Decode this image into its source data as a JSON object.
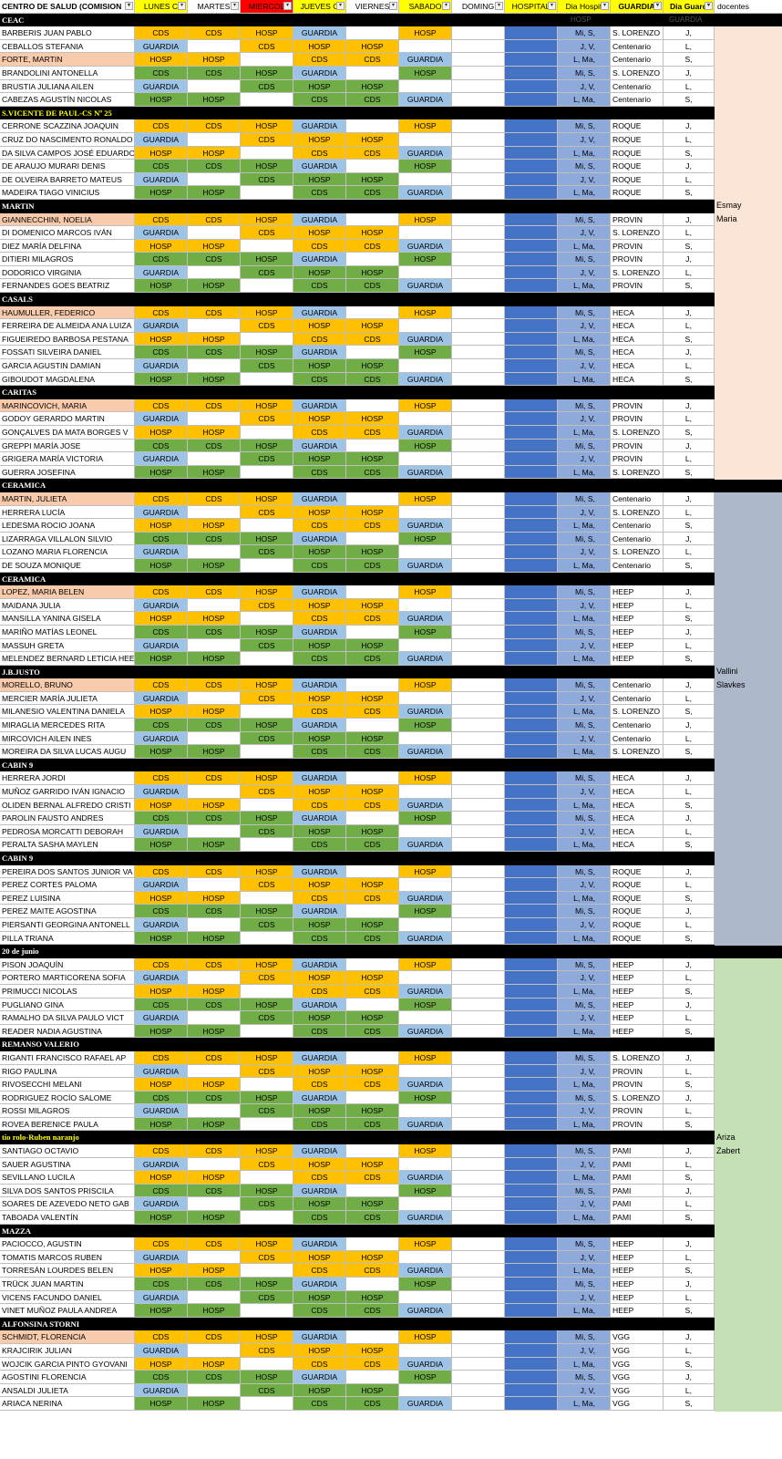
{
  "colors": {
    "cds": "#ffc000",
    "hosp_orange": "#ffc000",
    "hosp_green": "#70ad47",
    "guardia_blue": "#9dc3e6",
    "green": "#70ad47",
    "hospital_col": "#4472c4",
    "dia_hosp_col": "#8eaadb",
    "highlight_name": "#f8cbad",
    "section_bg": "#000000",
    "side_peach": "#fbe5d6",
    "side_slate": "#adb9ca",
    "side_green": "#c5e0b4"
  },
  "headers": {
    "centro": "CENTRO DE SALUD (COMISION",
    "lunes": "LUNES C",
    "martes": "MARTES",
    "miercoles": "MIERCOL",
    "jueves": "JUEVES C",
    "viernes": "VIERNES",
    "sabado": "SABADO",
    "domingo": "DOMING",
    "hospital": "HOSPITAL",
    "dia_hosp": "Dia Hospit",
    "guardia": "GUARDIA",
    "dia_guard": "Dia Guard",
    "docentes": "docentes",
    "dropdown_icon": "▾"
  },
  "patterns": {
    "A": {
      "days": [
        "CDS",
        "CDS",
        "HOSP",
        "GUARDIA",
        "",
        "HOSP",
        ""
      ],
      "fills": [
        "o",
        "o",
        "o",
        "b",
        "w",
        "o",
        "w"
      ],
      "dia_hosp": "Mi, S,",
      "dia_guard": "J,"
    },
    "B": {
      "days": [
        "GUARDIA",
        "",
        "CDS",
        "HOSP",
        "HOSP",
        "",
        ""
      ],
      "fills": [
        "b",
        "w",
        "o",
        "o",
        "o",
        "w",
        "w"
      ],
      "dia_hosp": "J, V,",
      "dia_guard": "L,"
    },
    "C": {
      "days": [
        "HOSP",
        "HOSP",
        "",
        "CDS",
        "CDS",
        "GUARDIA",
        ""
      ],
      "fills": [
        "o",
        "o",
        "w",
        "o",
        "o",
        "b",
        "w"
      ],
      "dia_hosp": "L, Ma,",
      "dia_guard": "S,"
    },
    "D": {
      "days": [
        "CDS",
        "CDS",
        "HOSP",
        "GUARDIA",
        "",
        "HOSP",
        ""
      ],
      "fills": [
        "g",
        "g",
        "g",
        "b",
        "w",
        "g",
        "w"
      ],
      "dia_hosp": "Mi, S,",
      "dia_guard": "J,"
    },
    "E": {
      "days": [
        "GUARDIA",
        "",
        "CDS",
        "HOSP",
        "HOSP",
        "",
        ""
      ],
      "fills": [
        "b",
        "w",
        "g",
        "g",
        "g",
        "w",
        "w"
      ],
      "dia_hosp": "J, V,",
      "dia_guard": "L,"
    },
    "F": {
      "days": [
        "HOSP",
        "HOSP",
        "",
        "CDS",
        "CDS",
        "GUARDIA",
        ""
      ],
      "fills": [
        "g",
        "g",
        "w",
        "g",
        "g",
        "b",
        "w"
      ],
      "dia_hosp": "L, Ma,",
      "dia_guard": "S,"
    }
  },
  "top_labels": {
    "hosp": "HOSP",
    "guardia": "GUARDIA"
  },
  "sections": [
    {
      "title": "CEAC",
      "title_color": "#ffffff",
      "rows": [
        {
          "name": "BARBERIS JUAN PABLO",
          "p": "A",
          "g": "S. LORENZO",
          "hl": false
        },
        {
          "name": "CEBALLOS STEFANIA",
          "p": "B",
          "g": "Centenario",
          "hl": false
        },
        {
          "name": "FORTE, MARTIN",
          "p": "C",
          "g": "Centenario",
          "hl": true
        },
        {
          "name": "BRANDOLINI ANTONELLA",
          "p": "D",
          "g": "S. LORENZO",
          "hl": false
        },
        {
          "name": "BRUSTIA JULIANA AILEN",
          "p": "E",
          "g": "Centenario",
          "hl": false
        },
        {
          "name": "CABEZAS AGUSTÍN NICOLAS",
          "p": "F",
          "g": "Centenario",
          "hl": false
        }
      ]
    },
    {
      "title": "S.VICENTE DE PAUL-CS Nº 25",
      "title_color": "#ffff00",
      "rows": [
        {
          "name": "CERRONE SCAZZINA JOAQUIN",
          "p": "A",
          "g": "ROQUE",
          "hl": false
        },
        {
          "name": "CRUZ DO NASCIMENTO RONALDO",
          "p": "B",
          "g": "ROQUE",
          "hl": false
        },
        {
          "name": "DA SILVA CAMPOS  JOSÉ EDUARDO",
          "p": "C",
          "g": "ROQUE",
          "hl": false
        },
        {
          "name": "DE ARAUJO MURARI DENIS",
          "p": "D",
          "g": "ROQUE",
          "hl": false
        },
        {
          "name": "DE OLVEIRA BARRETO  MATEUS",
          "p": "E",
          "g": "ROQUE",
          "hl": false
        },
        {
          "name": "MADEIRA TIAGO VINICIUS",
          "p": "F",
          "g": "ROQUE",
          "hl": false
        }
      ]
    },
    {
      "title": "MARTIN",
      "title_color": "#ffffff",
      "rows": [
        {
          "name": "GIANNECCHINI, NOELIA",
          "p": "A",
          "g": "PROVIN",
          "hl": true
        },
        {
          "name": "DI DOMENICO MARCOS IVÁN",
          "p": "B",
          "g": "S. LORENZO",
          "hl": false
        },
        {
          "name": "DIEZ MARÍA DELFINA",
          "p": "C",
          "g": "PROVIN",
          "hl": false
        },
        {
          "name": "DITIERI MILAGROS",
          "p": "D",
          "g": "PROVIN",
          "hl": false
        },
        {
          "name": "DODORICO VIRGINIA",
          "p": "E",
          "g": "S. LORENZO",
          "hl": false
        },
        {
          "name": "FERNANDES GOES BEATRIZ",
          "p": "F",
          "g": "PROVIN",
          "hl": false
        }
      ]
    },
    {
      "title": "CASALS",
      "title_color": "#ffffff",
      "rows": [
        {
          "name": "HAUMULLER, FEDERICO",
          "p": "A",
          "g": "HECA",
          "hl": true
        },
        {
          "name": "FERREIRA DE ALMEIDA ANA LUIZA",
          "p": "B",
          "g": "HECA",
          "hl": false
        },
        {
          "name": "FIGUEIREDO BARBOSA PESTANA",
          "p": "C",
          "g": "HECA",
          "hl": false
        },
        {
          "name": "FOSSATI SILVEIRA DANIEL",
          "p": "D",
          "g": "HECA",
          "hl": false
        },
        {
          "name": "GARCIA AGUSTIN DAMIAN",
          "p": "E",
          "g": "HECA",
          "hl": false
        },
        {
          "name": "GIBOUDOT MAGDALENA",
          "p": "F",
          "g": "HECA",
          "hl": false
        }
      ]
    },
    {
      "title": "CARITAS",
      "title_color": "#ffffff",
      "rows": [
        {
          "name": "MARINCOVICH, MARIA",
          "p": "A",
          "g": "PROVIN",
          "hl": true
        },
        {
          "name": "GODOY GERARDO MARTIN",
          "p": "B",
          "g": "PROVIN",
          "hl": false
        },
        {
          "name": "GONÇALVES DA MATA BORGES V",
          "p": "C",
          "g": "S. LORENZO",
          "hl": false
        },
        {
          "name": "GREPPI MARÍA JOSE",
          "p": "D",
          "g": "PROVIN",
          "hl": false
        },
        {
          "name": "GRIGERA MARÍA VICTORIA",
          "p": "E",
          "g": "PROVIN",
          "hl": false
        },
        {
          "name": "GUERRA JOSEFINA",
          "p": "F",
          "g": "S. LORENZO",
          "hl": false
        }
      ]
    },
    {
      "title": "CERAMICA",
      "title_color": "#ffffff",
      "rows": [
        {
          "name": "MARTIN, JULIETA",
          "p": "A",
          "g": "Centenario",
          "hl": true
        },
        {
          "name": "HERRERA LUCÍA",
          "p": "B",
          "g": "S. LORENZO",
          "hl": false
        },
        {
          "name": "LEDESMA ROCIO JOANA",
          "p": "C",
          "g": "Centenario",
          "hl": false
        },
        {
          "name": "LIZARRAGA VILLALON SILVIO",
          "p": "D",
          "g": "Centenario",
          "hl": false
        },
        {
          "name": "LOZANO MARIA FLORENCIA",
          "p": "E",
          "g": "S. LORENZO",
          "hl": false
        },
        {
          "name": "DE SOUZA MONIQUE",
          "p": "F",
          "g": "Centenario",
          "hl": false
        }
      ]
    },
    {
      "title": "CERAMICA",
      "title_color": "#ffffff",
      "rows": [
        {
          "name": "LOPEZ, MARIA BELEN",
          "p": "A",
          "g": "HEEP",
          "hl": true
        },
        {
          "name": "MAIDANA JULIA",
          "p": "B",
          "g": "HEEP",
          "hl": false
        },
        {
          "name": "MANSILLA YANINA GISELA",
          "p": "C",
          "g": "HEEP",
          "hl": false
        },
        {
          "name": "MARIÑO MATÍAS LEONEL",
          "p": "D",
          "g": "HEEP",
          "hl": false
        },
        {
          "name": "MASSUH GRETA",
          "p": "E",
          "g": "HEEP",
          "hl": false
        },
        {
          "name": "MELENDEZ BERNARD LETICIA HEE",
          "p": "F",
          "g": "HEEP",
          "hl": false
        }
      ]
    },
    {
      "title": "J.B.JUSTO",
      "title_color": "#ffffff",
      "rows": [
        {
          "name": "MORELLO, BRUNO",
          "p": "A",
          "g": "Centenario",
          "hl": true
        },
        {
          "name": "MERCIER MARÍA JULIETA",
          "p": "B",
          "g": "Centenario",
          "hl": false
        },
        {
          "name": "MILANESIO VALENTINA DANIELA",
          "p": "C",
          "g": "S. LORENZO",
          "hl": false
        },
        {
          "name": "MIRAGLIA MERCEDES RITA",
          "p": "D",
          "g": "Centenario",
          "hl": false
        },
        {
          "name": "MIRCOVICH AILEN INES",
          "p": "E",
          "g": "Centenario",
          "hl": false
        },
        {
          "name": "MOREIRA DA SILVA LUCAS AUGU",
          "p": "F",
          "g": "S. LORENZO",
          "hl": false
        }
      ]
    },
    {
      "title": "CABIN 9",
      "title_color": "#ffffff",
      "rows": [
        {
          "name": "HERRERA JORDI",
          "p": "A",
          "g": "HECA",
          "hl": false
        },
        {
          "name": "MUÑOZ GARRIDO IVÁN IGNACIO",
          "p": "B",
          "g": "HECA",
          "hl": false
        },
        {
          "name": "OLIDEN BERNAL ALFREDO CRISTI",
          "p": "C",
          "g": "HECA",
          "hl": false
        },
        {
          "name": "PAROLIN FAUSTO ANDRES",
          "p": "D",
          "g": "HECA",
          "hl": false
        },
        {
          "name": "PEDROSA MORCATTI  DEBORAH",
          "p": "E",
          "g": "HECA",
          "hl": false
        },
        {
          "name": "PERALTA SASHA MAYLEN",
          "p": "F",
          "g": "HECA",
          "hl": false
        }
      ]
    },
    {
      "title": "CABIN 9",
      "title_color": "#ffffff",
      "rows": [
        {
          "name": "PEREIRA DOS SANTOS JUNIOR VA",
          "p": "A",
          "g": "ROQUE",
          "hl": false
        },
        {
          "name": "PEREZ CORTES PALOMA",
          "p": "B",
          "g": "ROQUE",
          "hl": false
        },
        {
          "name": "PEREZ LUISINA",
          "p": "C",
          "g": "ROQUE",
          "hl": false
        },
        {
          "name": "PEREZ MAITE AGOSTINA",
          "p": "D",
          "g": "ROQUE",
          "hl": false
        },
        {
          "name": "PIERSANTI GEORGINA ANTONELL",
          "p": "E",
          "g": "ROQUE",
          "hl": false
        },
        {
          "name": "PILLA TRIANA",
          "p": "F",
          "g": "ROQUE",
          "hl": false
        }
      ]
    },
    {
      "title": "20 de junio",
      "title_color": "#ffffff",
      "rows": [
        {
          "name": "PISON JOAQUÍN",
          "p": "A",
          "g": "HEEP",
          "hl": false
        },
        {
          "name": "PORTERO MARTICORENA SOFIA",
          "p": "B",
          "g": "HEEP",
          "hl": false
        },
        {
          "name": "PRIMUCCI NICOLAS",
          "p": "C",
          "g": "HEEP",
          "hl": false
        },
        {
          "name": "PUGLIANO GINA",
          "p": "D",
          "g": "HEEP",
          "hl": false
        },
        {
          "name": "RAMALHO  DA SILVA PAULO VICT",
          "p": "E",
          "g": "HEEP",
          "hl": false
        },
        {
          "name": "READER NADIA AGUSTINA",
          "p": "F",
          "g": "HEEP",
          "hl": false
        }
      ]
    },
    {
      "title": "REMANSO VALERIO",
      "title_color": "#ffffff",
      "rows": [
        {
          "name": "RIGANTI  FRANCISCO RAFAEL AP",
          "p": "A",
          "g": "S. LORENZO",
          "hl": false
        },
        {
          "name": "RIGO PAULINA",
          "p": "B",
          "g": "PROVIN",
          "hl": false
        },
        {
          "name": "RIVOSECCHI MELANI",
          "p": "C",
          "g": "PROVIN",
          "hl": false
        },
        {
          "name": "RODRIGUEZ ROCÍO SALOME",
          "p": "D",
          "g": "S. LORENZO",
          "hl": false
        },
        {
          "name": "ROSSI MILAGROS",
          "p": "E",
          "g": "PROVIN",
          "hl": false
        },
        {
          "name": "ROVEA BERENICE PAULA",
          "p": "F",
          "g": "PROVIN",
          "hl": false
        }
      ]
    },
    {
      "title": "tio rolo-Ruben naranjo",
      "title_color": "#ffff00",
      "rows": [
        {
          "name": "SANTIAGO OCTAVIO",
          "p": "A",
          "g": "PAMI",
          "hl": false
        },
        {
          "name": "SAUER AGUSTINA",
          "p": "B",
          "g": "PAMI",
          "hl": false
        },
        {
          "name": "SEVILLANO LUCILA",
          "p": "C",
          "g": "PAMI",
          "hl": false
        },
        {
          "name": "SILVA DOS SANTOS PRISCILA",
          "p": "D",
          "g": "PAMI",
          "hl": false
        },
        {
          "name": "SOARES DE AZEVEDO NETO  GAB",
          "p": "E",
          "g": "PAMI",
          "hl": false
        },
        {
          "name": "TABOADA VALENTÍN",
          "p": "F",
          "g": "PAMI",
          "hl": false
        }
      ]
    },
    {
      "title": "MAZZA",
      "title_color": "#ffffff",
      "rows": [
        {
          "name": "PACIOCCO, AGUSTIN",
          "p": "A",
          "g": "HEEP",
          "hl": false
        },
        {
          "name": "TOMATIS MARCOS RUBEN",
          "p": "B",
          "g": "HEEP",
          "hl": false
        },
        {
          "name": "TORRESÁN LOURDES BELEN",
          "p": "C",
          "g": "HEEP",
          "hl": false
        },
        {
          "name": "TRÜCK JUAN MARTIN",
          "p": "D",
          "g": "HEEP",
          "hl": false
        },
        {
          "name": "VICENS FACUNDO DANIEL",
          "p": "E",
          "g": "HEEP",
          "hl": false
        },
        {
          "name": "VINET MUÑOZ PAULA ANDREA",
          "p": "F",
          "g": "HEEP",
          "hl": false
        }
      ]
    },
    {
      "title": "ALFONSINA STORNI",
      "title_color": "#ffffff",
      "rows": [
        {
          "name": "SCHMIDT, FLORENCIA",
          "p": "A",
          "g": "VGG",
          "hl": true
        },
        {
          "name": "KRAJCIRIK JULIAN",
          "p": "B",
          "g": "VGG",
          "hl": false
        },
        {
          "name": "WOJCIK GARCIA PINTO GYOVANI",
          "p": "C",
          "g": "VGG",
          "hl": false
        },
        {
          "name": "AGOSTINI FLORENCIA",
          "p": "D",
          "g": "VGG",
          "hl": false
        },
        {
          "name": "ANSALDI JULIETA",
          "p": "E",
          "g": "VGG",
          "hl": false
        },
        {
          "name": "ARIACA NERINA",
          "p": "F",
          "g": "VGG",
          "hl": false
        }
      ]
    }
  ],
  "docentes_notes": [
    {
      "after_section": 2,
      "lines": [
        "Esmay",
        "Maria"
      ]
    },
    {
      "after_section": 7,
      "lines": [
        "Vallini",
        "Slavkes"
      ]
    },
    {
      "after_section": 12,
      "lines": [
        "Ariza",
        "Zabert"
      ]
    }
  ]
}
